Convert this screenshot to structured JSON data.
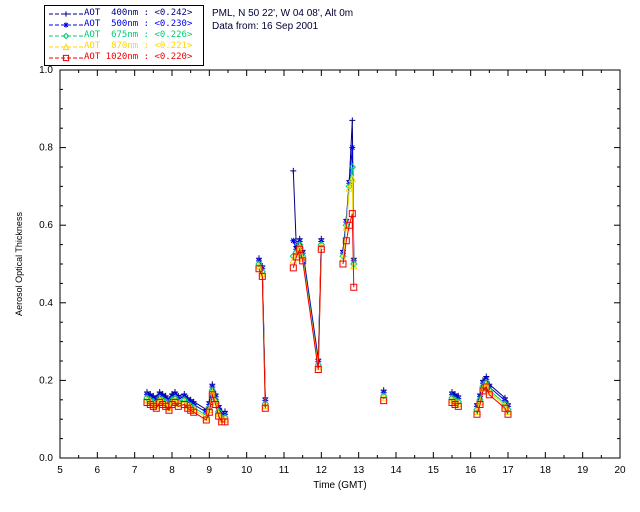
{
  "header": {
    "location": "PML, N 50 22', W 04 08', Alt 0m",
    "date_line": "Data from: 16 Sep 2001"
  },
  "colors": {
    "axis": "#000000",
    "header_text": "#000033",
    "background": "#ffffff"
  },
  "chart_data": {
    "type": "line",
    "title": "",
    "xlabel": "Time (GMT)",
    "ylabel": "Aerosol Optical Thickness",
    "xlim": [
      5,
      20
    ],
    "ylim": [
      0.0,
      1.0
    ],
    "xticks": [
      5,
      6,
      7,
      8,
      9,
      10,
      11,
      12,
      13,
      14,
      15,
      16,
      17,
      18,
      19,
      20
    ],
    "yticks": [
      0.0,
      0.2,
      0.4,
      0.6,
      0.8,
      1.0
    ],
    "ytick_labels": [
      "0.0",
      "0.2",
      "0.4",
      "0.6",
      "0.8",
      "1.0"
    ],
    "grid": false,
    "legend_position": "top-left",
    "gap_threshold_hours": 0.45,
    "x": [
      7.33,
      7.42,
      7.5,
      7.58,
      7.67,
      7.75,
      7.83,
      7.92,
      8.0,
      8.08,
      8.17,
      8.33,
      8.42,
      8.5,
      8.58,
      8.92,
      9.0,
      9.08,
      9.17,
      9.25,
      9.33,
      9.42,
      10.33,
      10.42,
      10.5,
      11.25,
      11.33,
      11.42,
      11.5,
      11.92,
      12.0,
      12.58,
      12.67,
      12.75,
      12.83,
      12.87,
      13.67,
      15.5,
      15.58,
      15.67,
      16.17,
      16.25,
      16.33,
      16.42,
      16.5,
      16.92,
      17.0
    ],
    "series": [
      {
        "id": "aot-400nm",
        "name": "AOT 400nm",
        "mean": "<0.242>",
        "legend_label": "AOT  400nm : <0.242>",
        "color": "#000080",
        "marker": "plus",
        "values": [
          0.17,
          0.165,
          0.16,
          0.155,
          0.17,
          0.165,
          0.16,
          0.15,
          0.165,
          0.17,
          0.16,
          0.165,
          0.155,
          0.15,
          0.145,
          0.125,
          0.145,
          0.19,
          0.165,
          0.135,
          0.12,
          0.12,
          0.515,
          0.495,
          0.155,
          0.74,
          0.545,
          0.565,
          0.535,
          0.255,
          0.565,
          0.535,
          0.615,
          0.715,
          0.87,
          0.515,
          0.175,
          0.17,
          0.165,
          0.16,
          0.14,
          0.165,
          0.2,
          0.21,
          0.19,
          0.155,
          0.14
        ]
      },
      {
        "id": "aot-500nm",
        "name": "AOT 500nm",
        "mean": "<0.230>",
        "legend_label": "AOT  500nm : <0.230>",
        "color": "#0000EE",
        "marker": "asterisk",
        "values": [
          0.163,
          0.158,
          0.153,
          0.148,
          0.163,
          0.158,
          0.153,
          0.143,
          0.158,
          0.163,
          0.153,
          0.158,
          0.148,
          0.143,
          0.138,
          0.118,
          0.138,
          0.183,
          0.158,
          0.128,
          0.113,
          0.113,
          0.508,
          0.488,
          0.148,
          0.56,
          0.538,
          0.558,
          0.528,
          0.248,
          0.558,
          0.528,
          0.608,
          0.708,
          0.8,
          0.508,
          0.168,
          0.163,
          0.158,
          0.153,
          0.133,
          0.158,
          0.193,
          0.203,
          0.183,
          0.148,
          0.133
        ]
      },
      {
        "id": "aot-675nm",
        "name": "AOT 675nm",
        "mean": "<0.226>",
        "legend_label": "AOT  675nm : <0.226>",
        "color": "#00CC77",
        "marker": "diamond",
        "values": [
          0.155,
          0.15,
          0.145,
          0.14,
          0.155,
          0.15,
          0.145,
          0.135,
          0.15,
          0.155,
          0.145,
          0.15,
          0.14,
          0.135,
          0.13,
          0.11,
          0.13,
          0.175,
          0.15,
          0.12,
          0.105,
          0.105,
          0.5,
          0.48,
          0.14,
          0.52,
          0.53,
          0.55,
          0.52,
          0.24,
          0.55,
          0.52,
          0.6,
          0.7,
          0.75,
          0.5,
          0.16,
          0.155,
          0.15,
          0.145,
          0.125,
          0.15,
          0.185,
          0.195,
          0.175,
          0.14,
          0.125
        ]
      },
      {
        "id": "aot-870nm",
        "name": "AOT 870nm",
        "mean": "<0.221>",
        "legend_label": "AOT  870nm : <0.221>",
        "color": "#FFD700",
        "marker": "triangle",
        "values": [
          0.15,
          0.145,
          0.14,
          0.135,
          0.15,
          0.145,
          0.14,
          0.13,
          0.145,
          0.15,
          0.14,
          0.145,
          0.135,
          0.13,
          0.125,
          0.105,
          0.125,
          0.17,
          0.145,
          0.115,
          0.1,
          0.1,
          0.495,
          0.475,
          0.135,
          0.51,
          0.525,
          0.545,
          0.515,
          0.235,
          0.545,
          0.515,
          0.595,
          0.695,
          0.72,
          0.495,
          0.155,
          0.15,
          0.145,
          0.14,
          0.12,
          0.145,
          0.18,
          0.19,
          0.17,
          0.135,
          0.12
        ]
      },
      {
        "id": "aot-1020nm",
        "name": "AOT 1020nm",
        "mean": "<0.220>",
        "legend_label": "AOT 1020nm : <0.220>",
        "color": "#EE0000",
        "marker": "square",
        "values": [
          0.143,
          0.138,
          0.133,
          0.128,
          0.143,
          0.138,
          0.133,
          0.123,
          0.138,
          0.143,
          0.133,
          0.138,
          0.128,
          0.123,
          0.118,
          0.098,
          0.118,
          0.163,
          0.138,
          0.108,
          0.093,
          0.093,
          0.488,
          0.468,
          0.128,
          0.49,
          0.518,
          0.538,
          0.508,
          0.228,
          0.538,
          0.5,
          0.56,
          0.6,
          0.63,
          0.44,
          0.148,
          0.143,
          0.138,
          0.133,
          0.113,
          0.138,
          0.173,
          0.183,
          0.163,
          0.128,
          0.113
        ]
      }
    ]
  }
}
